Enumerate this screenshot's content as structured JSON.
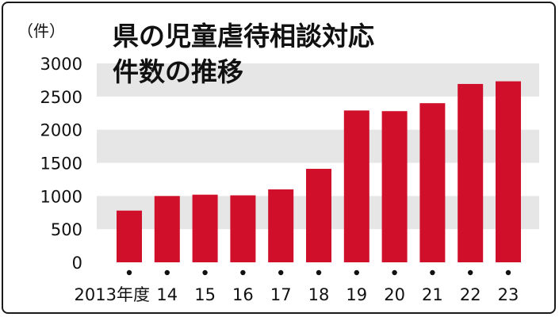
{
  "chart_data": {
    "type": "bar",
    "title_lines": [
      "県の児童虐待相談対応",
      "件数の推移"
    ],
    "ylabel": "（件）",
    "xlabel": "",
    "categories": [
      "2013年度",
      "14",
      "15",
      "16",
      "17",
      "18",
      "19",
      "20",
      "21",
      "22",
      "23"
    ],
    "values": [
      780,
      1000,
      1020,
      1010,
      1100,
      1410,
      2290,
      2280,
      2400,
      2690,
      2730
    ],
    "ylim": [
      0,
      3000
    ],
    "yticks": [
      "0",
      "500",
      "1000",
      "1500",
      "2000",
      "2500",
      "3000"
    ],
    "grid": "alternating horizontal bands",
    "bar_color": "#d0102a",
    "band_color": "#e6e6e6"
  }
}
